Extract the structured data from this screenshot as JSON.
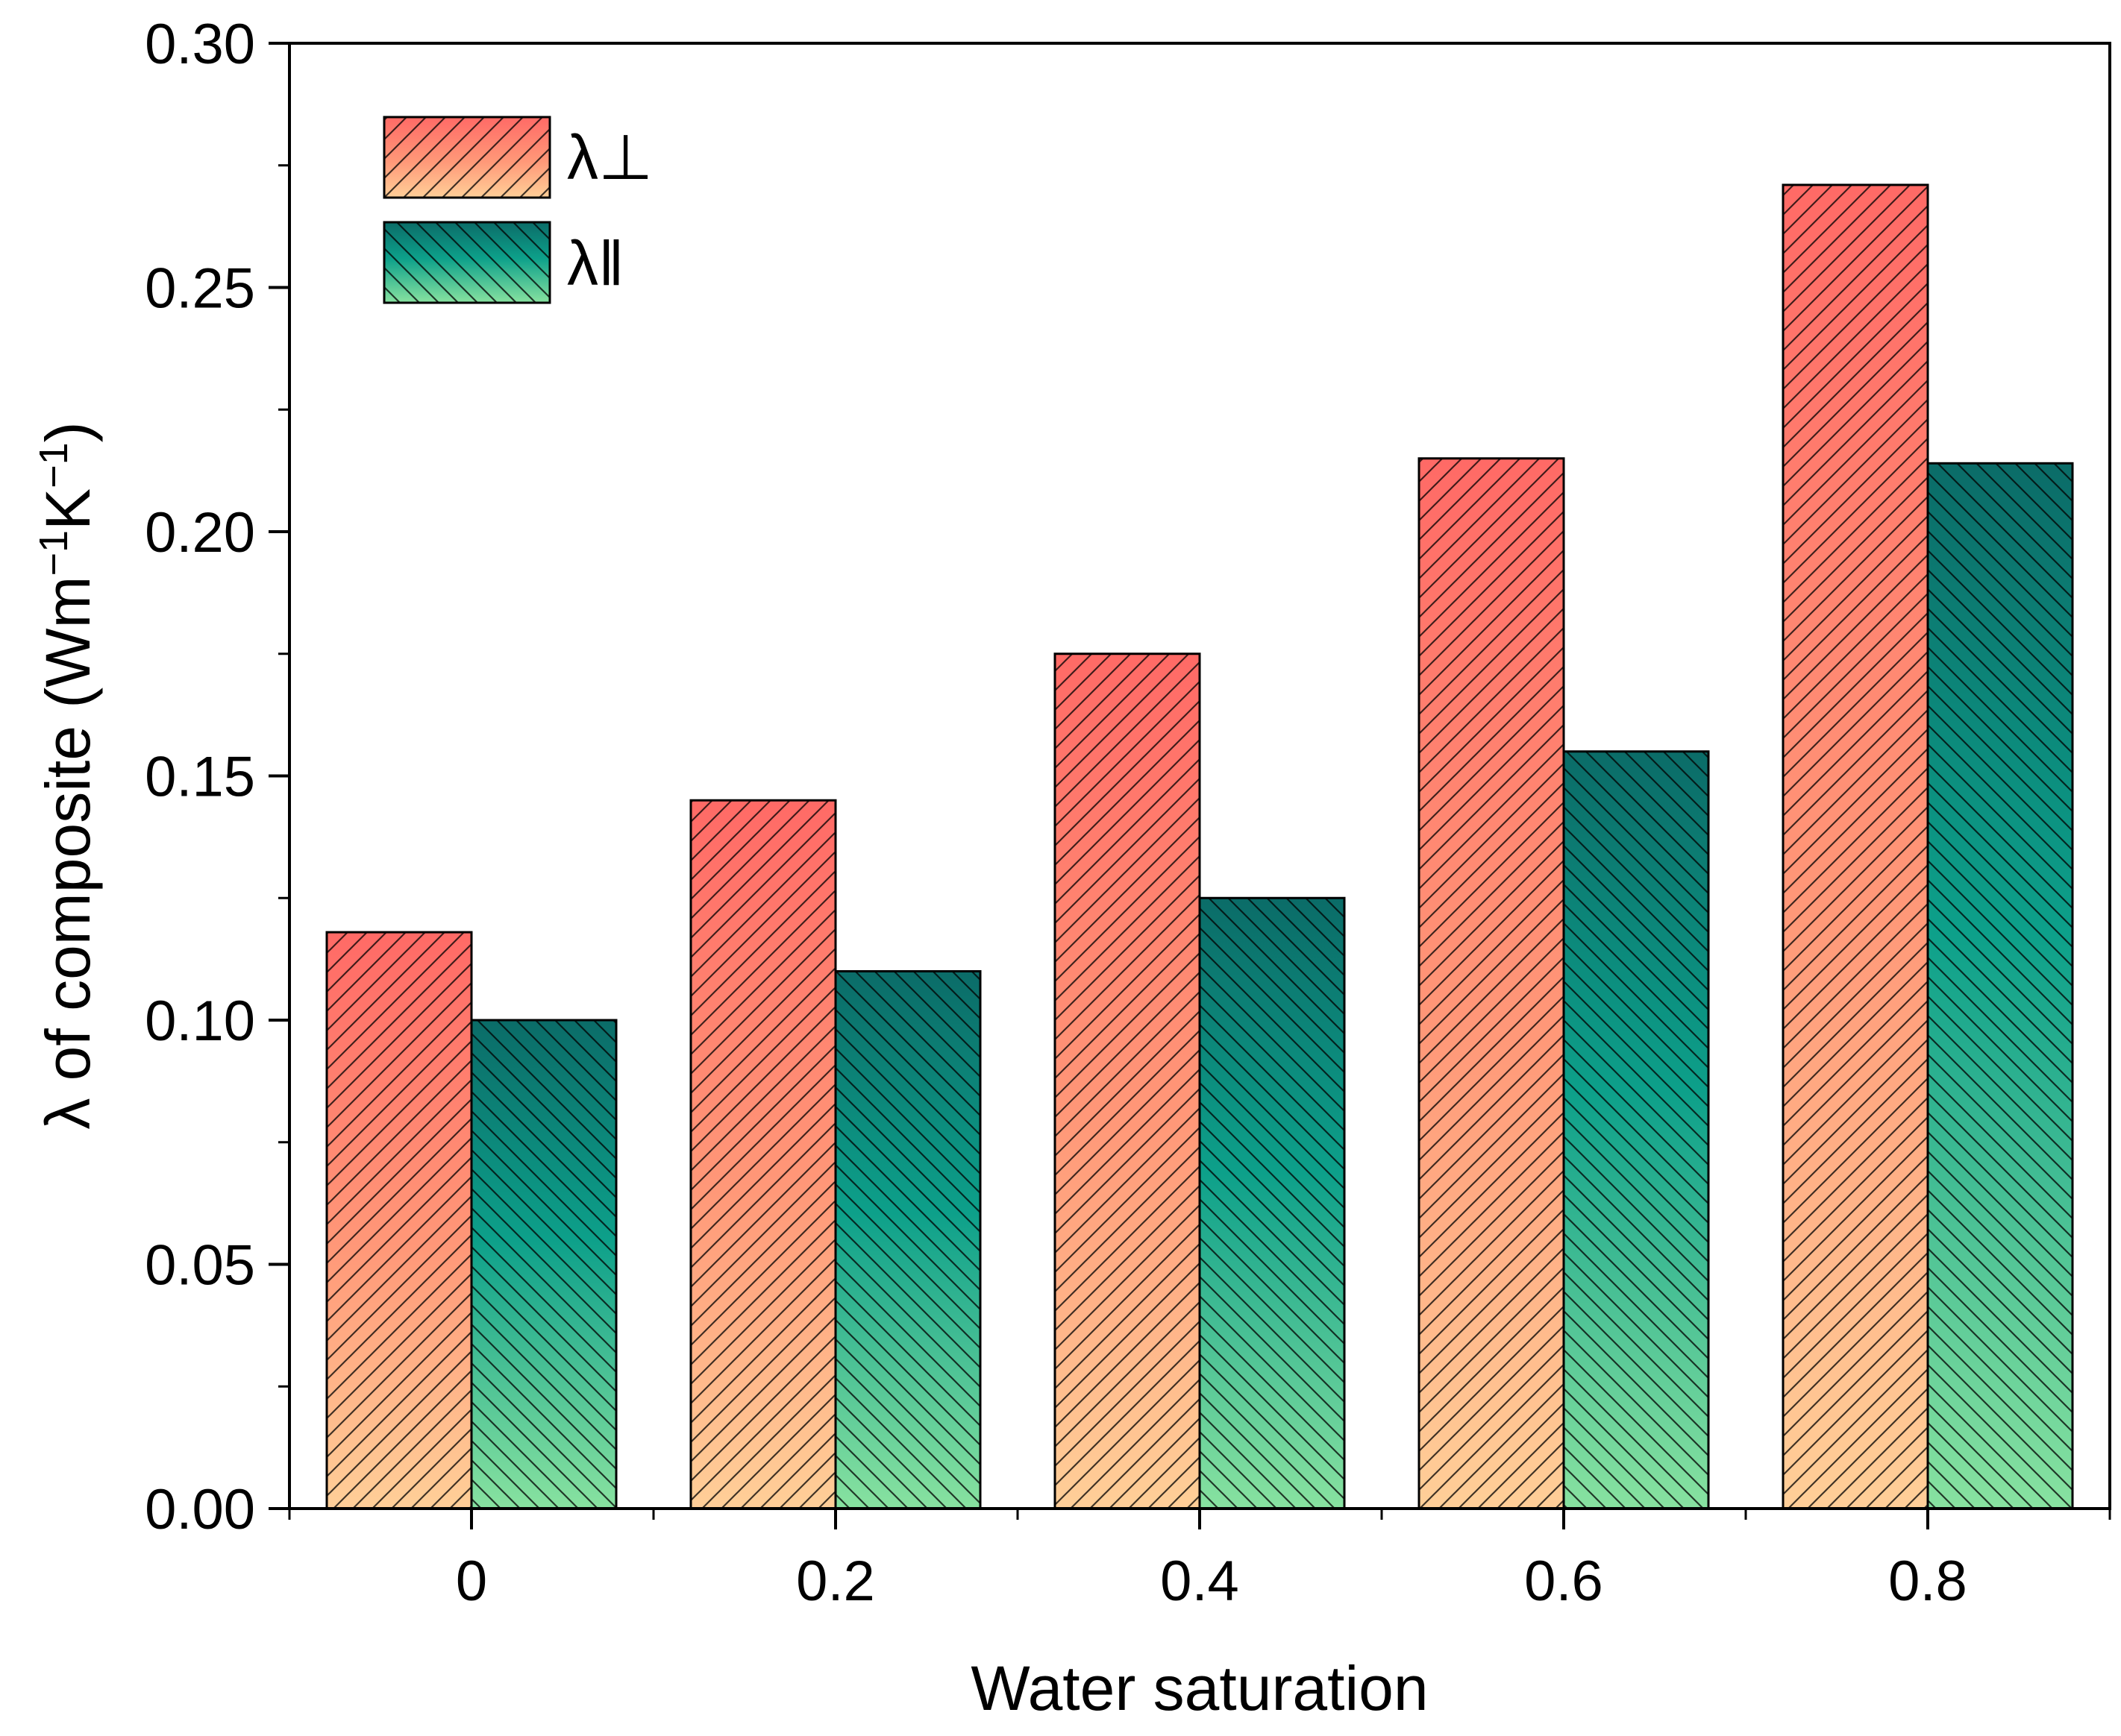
{
  "chart_data": {
    "type": "bar",
    "title": "",
    "xlabel": "Water saturation",
    "ylabel": {
      "main": "λ of composite (Wm",
      "sup1": "−1",
      "mid": "K",
      "sup2": "−1",
      "end": ")"
    },
    "categories": [
      "0",
      "0.2",
      "0.4",
      "0.6",
      "0.8"
    ],
    "series": [
      {
        "name": "λ⊥",
        "values": [
          0.118,
          0.145,
          0.175,
          0.215,
          0.271
        ],
        "hatch": "forward-diagonal",
        "gradient_top": "#ff6a66",
        "gradient_bottom": "#ffcf98"
      },
      {
        "name": "λ‖",
        "values": [
          0.1,
          0.11,
          0.125,
          0.155,
          0.214
        ],
        "hatch": "back-diagonal",
        "gradient_top": "#0b6c68",
        "gradient_mid": "#0da08a",
        "gradient_bottom": "#88e2a0"
      }
    ],
    "ylim": [
      0,
      0.3
    ],
    "yticks": [
      "0.00",
      "0.05",
      "0.10",
      "0.15",
      "0.20",
      "0.25",
      "0.30"
    ],
    "ytick_values": [
      0,
      0.05,
      0.1,
      0.15,
      0.2,
      0.25,
      0.3
    ],
    "legend_position": "top-left",
    "grid": false
  },
  "colors": {
    "axis": "#000000",
    "bar_edge": "#000000"
  }
}
